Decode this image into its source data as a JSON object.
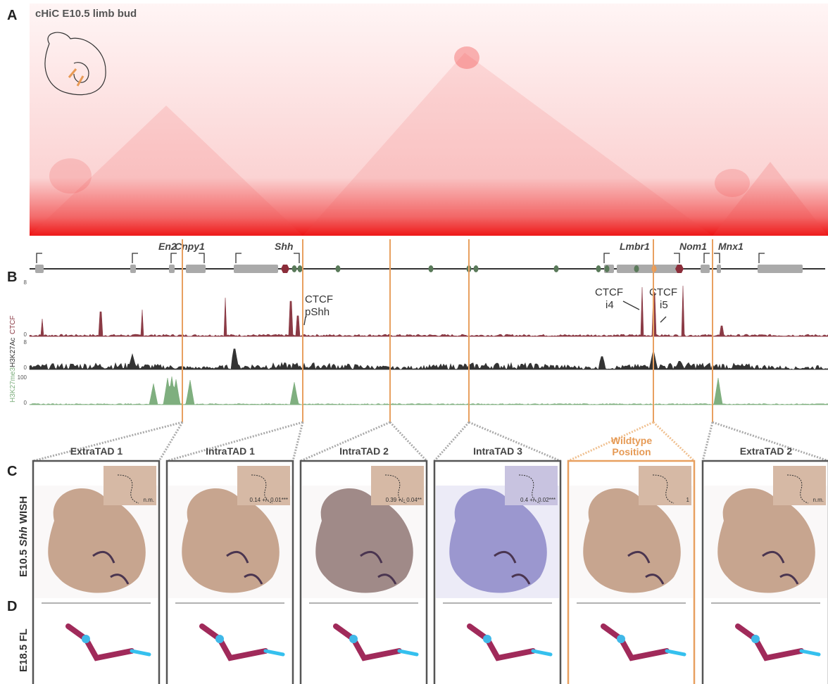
{
  "panels": {
    "a": "A",
    "b": "B",
    "c": "C",
    "d": "D"
  },
  "hic_title": "cHiC E10.5 limb bud",
  "genes": [
    "En2",
    "Cnpy1",
    "Shh",
    "Lmbr1",
    "Nom1",
    "Mnx1"
  ],
  "tracks": [
    {
      "name": "CTCF",
      "max": "8",
      "min": "0"
    },
    {
      "name": "H3K27Ac",
      "max": "8",
      "min": "0"
    },
    {
      "name": "H3K27me3",
      "max": "100",
      "min": "0"
    }
  ],
  "annotations": [
    {
      "line1": "CTCF",
      "line2": "pShh"
    },
    {
      "line1": "CTCF",
      "line2": "i4"
    },
    {
      "line1": "CTCF",
      "line2": "i5"
    }
  ],
  "columns": [
    {
      "title": "ExtraTAD 1",
      "inset": "n.m."
    },
    {
      "title": "IntraTAD 1",
      "inset": "0.14 +/- 0.01***"
    },
    {
      "title": "IntraTAD 2",
      "inset": "0.39 +/- 0.04**"
    },
    {
      "title": "IntraTAD 3",
      "inset": "0.4 +/- 0.02***"
    },
    {
      "title": "Wildtype Position",
      "inset": "1"
    },
    {
      "title": "ExtraTAD 2",
      "inset": "n.m."
    }
  ],
  "row_c": {
    "pre": "E10.5",
    "gene": "Shh",
    "post": "WISH"
  },
  "row_d": "E18.5 FL"
}
